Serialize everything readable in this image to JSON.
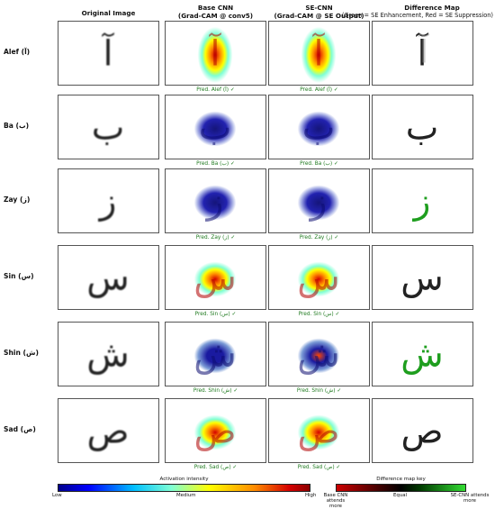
{
  "columns": {
    "original": "Original Image",
    "base_title": "Base CNN",
    "base_sub": "(Grad-CAM @ conv5)",
    "se_title": "SE-CNN",
    "se_sub": "(Grad-CAM @ SE Output)",
    "diff_title": "Difference Map",
    "diff_note": "(Green = SE Enhancement, Red = SE Suppression)"
  },
  "rows": [
    {
      "label": "Alef (آ)",
      "glyph": "آ",
      "pred_base": "Pred. Alef (آ) ✓",
      "pred_se": "Pred. Alef (آ) ✓",
      "heat": "hot-vertical",
      "diff": "mixed"
    },
    {
      "label": "Ba (ب)",
      "glyph": "ب",
      "pred_base": "Pred. Ba (ب) ✓",
      "pred_se": "Pred. Ba (ب) ✓",
      "heat": "cool",
      "diff": "dark"
    },
    {
      "label": "Zay (ز)",
      "glyph": "ز",
      "pred_base": "Pred. Zay (ز) ✓",
      "pred_se": "Pred. Zay (ز) ✓",
      "heat": "cool",
      "diff": "green"
    },
    {
      "label": "Sin (س)",
      "glyph": "س",
      "pred_base": "Pred. Sin (س) ✓",
      "pred_se": "Pred. Sin (س) ✓",
      "heat": "hot",
      "diff": "dark"
    },
    {
      "label": "Shin (ش)",
      "glyph": "ش",
      "pred_base": "Pred. Shin (ش) ✓",
      "pred_se": "Pred. Shin (ش) ✓",
      "heat": "cool-warm",
      "diff": "green"
    },
    {
      "label": "Sad (ص)",
      "glyph": "ص",
      "pred_base": "Pred. Sad (ص) ✓",
      "pred_se": "Pred. Sad (ص) ✓",
      "heat": "hot",
      "diff": "dark"
    }
  ],
  "legend": {
    "activation_title": "Activation intensity",
    "activation_low": "Low",
    "activation_mid": "Medium",
    "activation_high": "High",
    "diff_title": "Difference map key",
    "diff_left": "Base CNN attends more",
    "diff_mid": "Equal",
    "diff_right": "SE-CNN attends more"
  },
  "colors": {
    "pred_text": "#1f7a1f",
    "heat_low": "#00008b",
    "heat_high": "#d40000",
    "diff_green": "#33dd33",
    "diff_red": "#cc0000"
  }
}
